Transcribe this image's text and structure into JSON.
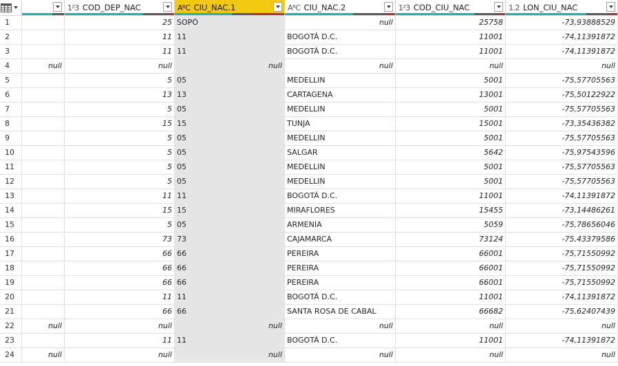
{
  "table_icon": "table-grid-icon",
  "columns": [
    {
      "key": "c0",
      "name": "",
      "type_icon": "",
      "quality": [
        0.72,
        0.22,
        0.06
      ]
    },
    {
      "key": "c1",
      "name": "COD_DEP_NAC",
      "type_icon": "1²3",
      "quality": [
        0.72,
        0.22,
        0.06
      ]
    },
    {
      "key": "c2",
      "name": "CIU_NAC.1",
      "type_icon": "AᴮC",
      "quality": [
        0.52,
        0.18,
        0.3
      ],
      "selected": true
    },
    {
      "key": "c3",
      "name": "CIU_NAC.2",
      "type_icon": "AᴮC",
      "quality": [
        0.62,
        0.28,
        0.1
      ]
    },
    {
      "key": "c4",
      "name": "COD_CIU_NAC",
      "type_icon": "1²3",
      "quality": [
        0.72,
        0.22,
        0.06
      ]
    },
    {
      "key": "c5",
      "name": "LON_CIU_NAC",
      "type_icon": "1.2",
      "quality": [
        0.72,
        0.22,
        0.06
      ]
    }
  ],
  "colors": {
    "selected_header": "#f2c811",
    "valid": "#1fb4aa",
    "empty": "#5a5a5a",
    "error": "#a8352e"
  },
  "rows": [
    [
      "1",
      "",
      "25",
      "SOPÓ",
      "null",
      "25758",
      "-73,93888529"
    ],
    [
      "2",
      "",
      "11",
      "11",
      "BOGOTÁ D.C.",
      "11001",
      "-74,11391872"
    ],
    [
      "3",
      "",
      "11",
      "11",
      "BOGOTÁ D.C.",
      "11001",
      "-74,11391872"
    ],
    [
      "4",
      "null",
      "null",
      "null",
      "null",
      "null",
      "null"
    ],
    [
      "5",
      "",
      "5",
      "05",
      "MEDELLIN",
      "5001",
      "-75,57705563"
    ],
    [
      "6",
      "",
      "13",
      "13",
      "CARTAGENA",
      "13001",
      "-75,50122922"
    ],
    [
      "7",
      "",
      "5",
      "05",
      "MEDELLIN",
      "5001",
      "-75,57705563"
    ],
    [
      "8",
      "",
      "15",
      "15",
      "TUNJA",
      "15001",
      "-73,35436382"
    ],
    [
      "9",
      "",
      "5",
      "05",
      "MEDELLIN",
      "5001",
      "-75,57705563"
    ],
    [
      "10",
      "",
      "5",
      "05",
      "SALGAR",
      "5642",
      "-75,97543596"
    ],
    [
      "11",
      "",
      "5",
      "05",
      "MEDELLIN",
      "5001",
      "-75,57705563"
    ],
    [
      "12",
      "",
      "5",
      "05",
      "MEDELLIN",
      "5001",
      "-75,57705563"
    ],
    [
      "13",
      "",
      "11",
      "11",
      "BOGOTÁ D.C.",
      "11001",
      "-74,11391872"
    ],
    [
      "14",
      "",
      "15",
      "15",
      "MIRAFLORES",
      "15455",
      "-73,14486261"
    ],
    [
      "15",
      "",
      "5",
      "05",
      "ARMENIA",
      "5059",
      "-75,78656046"
    ],
    [
      "16",
      "",
      "73",
      "73",
      "CAJAMARCA",
      "73124",
      "-75,43379586"
    ],
    [
      "17",
      "",
      "66",
      "66",
      "PEREIRA",
      "66001",
      "-75,71550992"
    ],
    [
      "18",
      "",
      "66",
      "66",
      "PEREIRA",
      "66001",
      "-75,71550992"
    ],
    [
      "19",
      "",
      "66",
      "66",
      "PEREIRA",
      "66001",
      "-75,71550992"
    ],
    [
      "20",
      "",
      "11",
      "11",
      "BOGOTÁ D.C.",
      "11001",
      "-74,11391872"
    ],
    [
      "21",
      "",
      "66",
      "66",
      "SANTA ROSA DE CABAL",
      "66682",
      "-75,62407439"
    ],
    [
      "22",
      "null",
      "null",
      "null",
      "null",
      "null",
      "null"
    ],
    [
      "23",
      "",
      "11",
      "11",
      "BOGOTÁ D.C.",
      "11001",
      "-74,11391872"
    ],
    [
      "24",
      "null",
      "null",
      "null",
      "null",
      "null",
      "null"
    ]
  ]
}
